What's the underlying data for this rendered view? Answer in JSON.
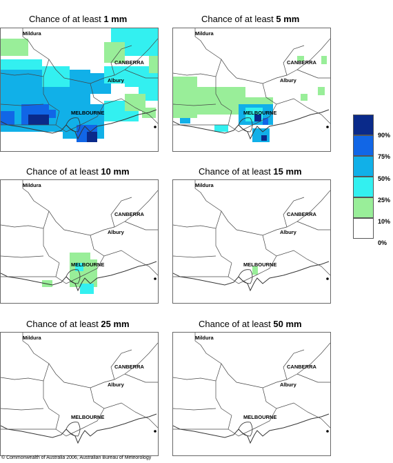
{
  "panels": [
    {
      "prefix": "Chance of at least ",
      "amount": "1 mm",
      "level": 4
    },
    {
      "prefix": "Chance of at least ",
      "amount": "5 mm",
      "level": 3
    },
    {
      "prefix": "Chance of at least ",
      "amount": "10 mm",
      "level": 2
    },
    {
      "prefix": "Chance of at least ",
      "amount": "15 mm",
      "level": 1
    },
    {
      "prefix": "Chance of at least ",
      "amount": "25 mm",
      "level": 0
    },
    {
      "prefix": "Chance of at least ",
      "amount": "50 mm",
      "level": 0
    }
  ],
  "towns": {
    "mildura": "Mildura",
    "canberra": "CANBERRA",
    "albury": "Albury",
    "melbourne": "MELBOURNE"
  },
  "legend": {
    "labels": [
      "90%",
      "75%",
      "50%",
      "25%",
      "10%",
      "0%"
    ],
    "colors": [
      "#0a2a8a",
      "#1166e6",
      "#11b0e8",
      "#33f0f0",
      "#99ee99",
      "#ffffff"
    ]
  },
  "copyright": "© Commonwealth of Australia 2006, Australian Bureau of Meteorology"
}
